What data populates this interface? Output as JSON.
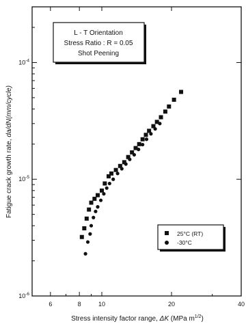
{
  "chart_data": {
    "type": "scatter",
    "xscale": "log",
    "yscale": "log",
    "xlim": [
      5,
      40
    ],
    "ylim": [
      1e-06,
      0.0003
    ],
    "xlabel": "Stress intensity factor range, ΔK (MPa m1/2)",
    "ylabel": "Fatigue crack growth rate, da/dN(mm/cycle)",
    "x_ticks": [
      {
        "value": 6,
        "label": "6"
      },
      {
        "value": 8,
        "label": "8"
      },
      {
        "value": 10,
        "label": "10"
      },
      {
        "value": 20,
        "label": "20"
      },
      {
        "value": 40,
        "label": "40"
      }
    ],
    "y_ticks": [
      {
        "value": 0.0001,
        "mant": "10",
        "exp": "-4"
      },
      {
        "value": 1e-05,
        "mant": "10",
        "exp": "-5"
      },
      {
        "value": 1e-06,
        "mant": "10",
        "exp": "-6"
      }
    ],
    "annotation": [
      "L - T Orientation",
      "Stress Ratio : R = 0.05",
      "Shot Peening"
    ],
    "legend_position": "lower-right",
    "series": [
      {
        "name": "25°C (RT)",
        "marker": "square",
        "points": [
          [
            8.2,
            3.2e-06
          ],
          [
            8.4,
            3.8e-06
          ],
          [
            8.6,
            4.6e-06
          ],
          [
            8.8,
            5.5e-06
          ],
          [
            9.0,
            6.3e-06
          ],
          [
            9.3,
            6.8e-06
          ],
          [
            9.6,
            7.3e-06
          ],
          [
            10.0,
            8e-06
          ],
          [
            10.3,
            9.2e-06
          ],
          [
            10.7,
            1.06e-05
          ],
          [
            11.0,
            1.12e-05
          ],
          [
            11.5,
            1.2e-05
          ],
          [
            12.0,
            1.3e-05
          ],
          [
            12.5,
            1.4e-05
          ],
          [
            13.0,
            1.55e-05
          ],
          [
            13.5,
            1.7e-05
          ],
          [
            14.0,
            1.85e-05
          ],
          [
            14.5,
            2e-05
          ],
          [
            15.0,
            2.2e-05
          ],
          [
            15.5,
            2.4e-05
          ],
          [
            16.0,
            2.6e-05
          ],
          [
            16.7,
            2.85e-05
          ],
          [
            17.3,
            3.1e-05
          ],
          [
            18.0,
            3.4e-05
          ],
          [
            18.8,
            3.8e-05
          ],
          [
            19.5,
            4.2e-05
          ],
          [
            20.5,
            4.8e-05
          ],
          [
            22.0,
            5.6e-05
          ]
        ]
      },
      {
        "name": "-30°C",
        "marker": "circle",
        "points": [
          [
            8.5,
            2.3e-06
          ],
          [
            8.7,
            2.9e-06
          ],
          [
            8.9,
            3.4e-06
          ],
          [
            9.0,
            4e-06
          ],
          [
            9.2,
            4.7e-06
          ],
          [
            9.4,
            5.3e-06
          ],
          [
            9.6,
            5.8e-06
          ],
          [
            9.9,
            6.6e-06
          ],
          [
            10.2,
            7.5e-06
          ],
          [
            10.5,
            8.4e-06
          ],
          [
            10.8,
            9.2e-06
          ],
          [
            11.2,
            1e-05
          ],
          [
            11.7,
            1.12e-05
          ],
          [
            12.2,
            1.23e-05
          ],
          [
            12.7,
            1.35e-05
          ],
          [
            13.2,
            1.48e-05
          ],
          [
            13.8,
            1.62e-05
          ],
          [
            14.4,
            1.8e-05
          ],
          [
            15.0,
            1.98e-05
          ],
          [
            15.6,
            2.2e-05
          ],
          [
            16.3,
            2.45e-05
          ],
          [
            17.0,
            2.7e-05
          ],
          [
            17.8,
            3e-05
          ]
        ]
      }
    ]
  }
}
